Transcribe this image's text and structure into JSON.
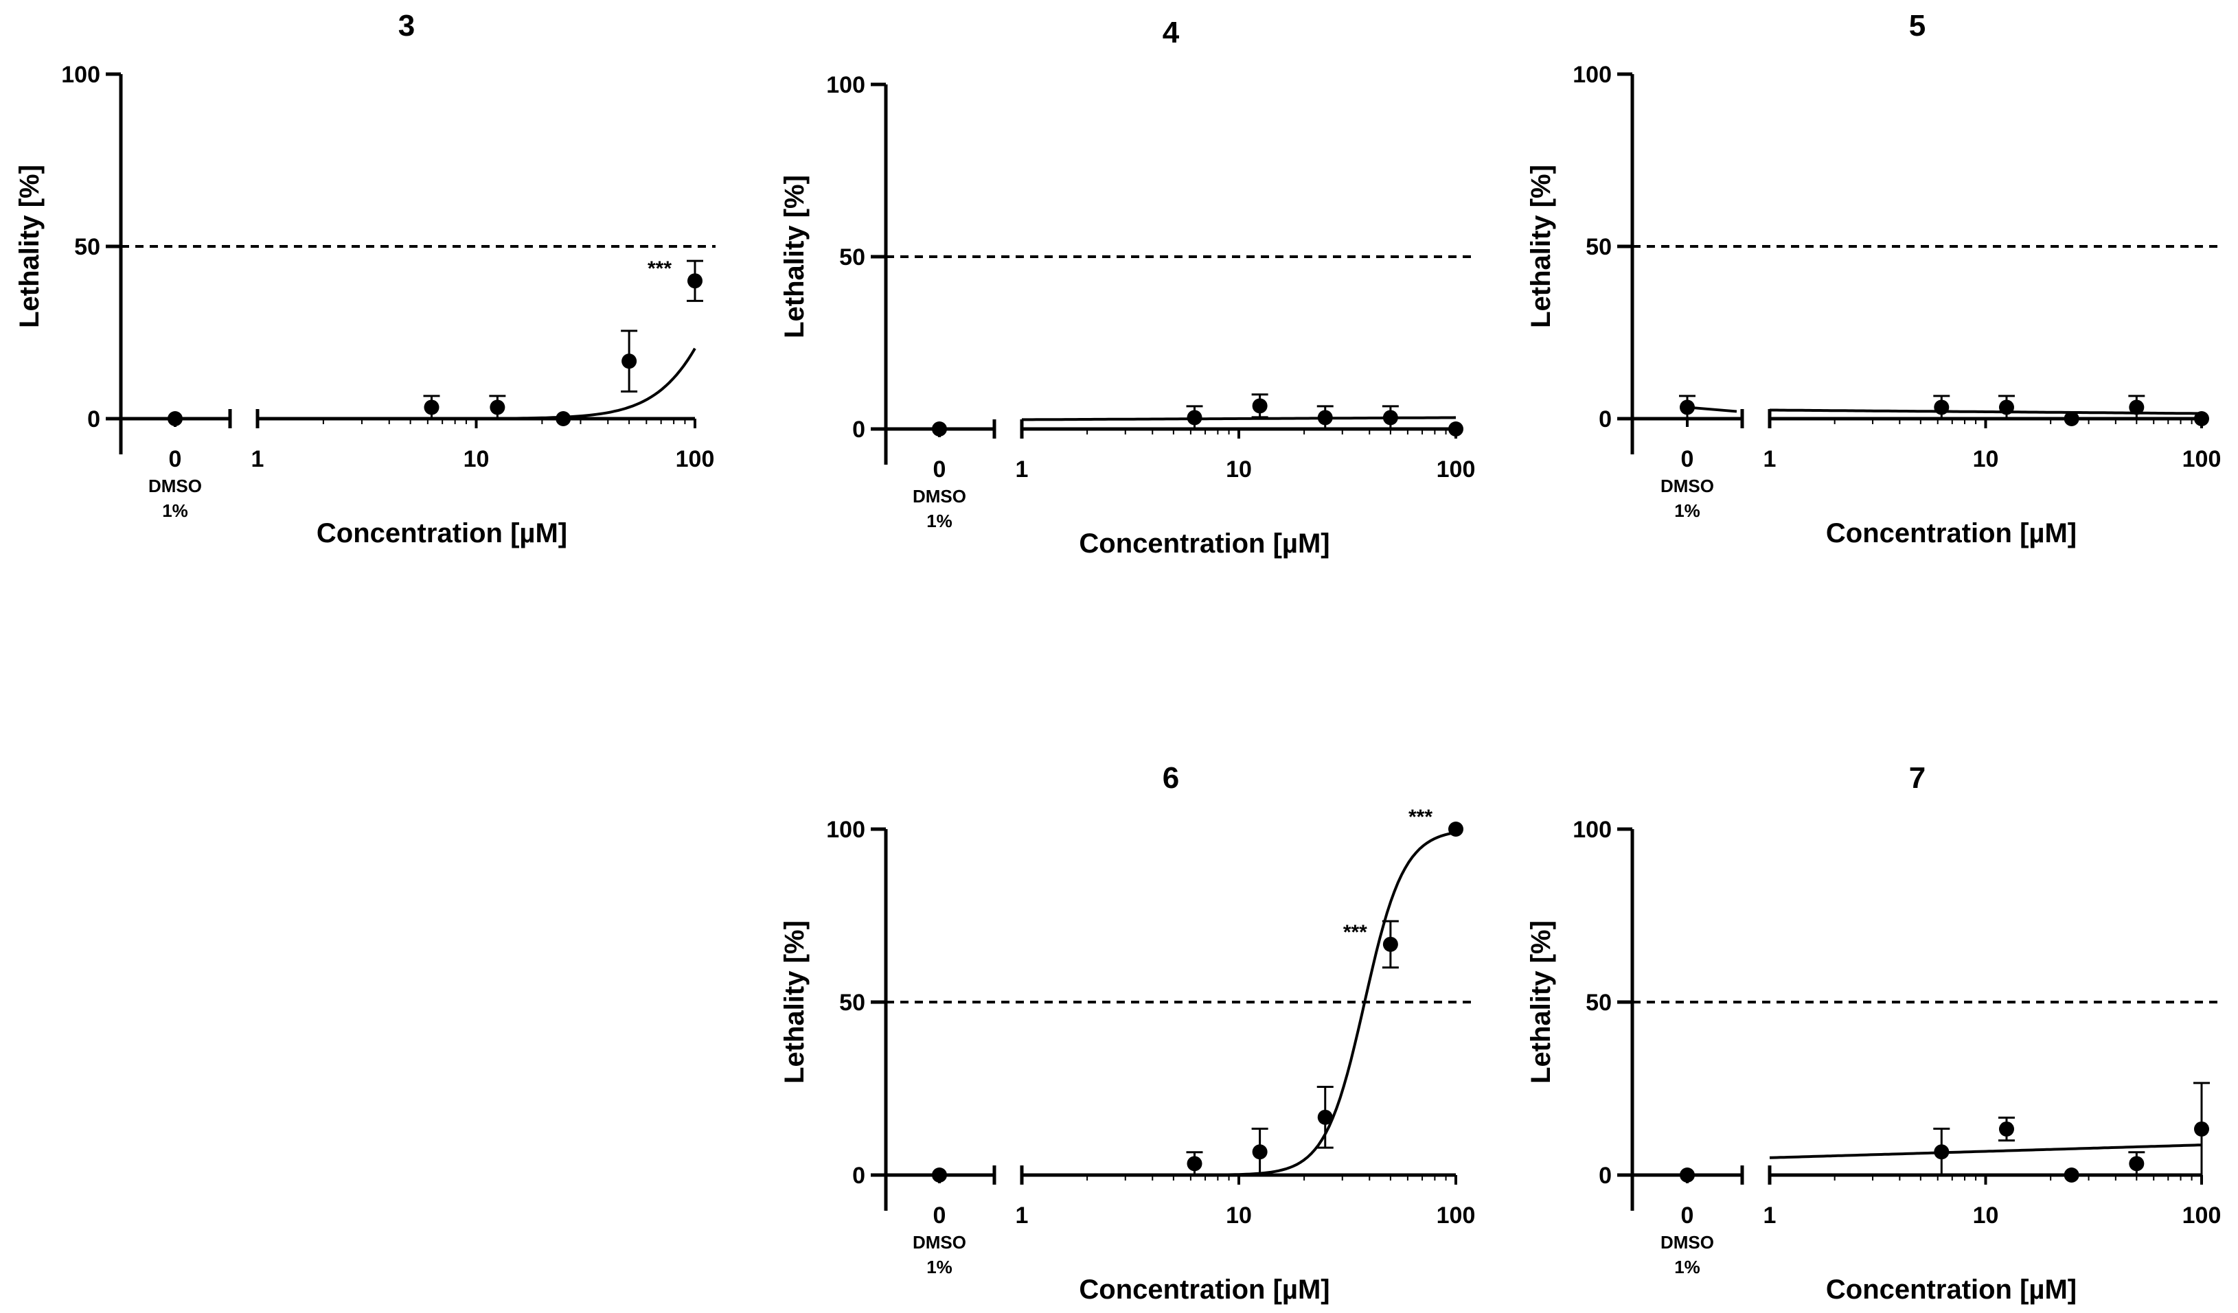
{
  "chart_data": [
    {
      "id": "3",
      "type": "scatter",
      "title": "3",
      "xlabel": "Concentration [µM]",
      "ylabel": "Lethality [%]",
      "xscale": "log",
      "xlim": [
        1,
        100
      ],
      "ylim": [
        0,
        100
      ],
      "yticks": [
        "0",
        "50",
        "100"
      ],
      "xticks": [
        "1",
        "10",
        "100"
      ],
      "control": {
        "tick": "0",
        "label_line1": "DMSO",
        "label_line2": "1%",
        "value": 0,
        "err": 0
      },
      "threshold": 50,
      "points": [
        {
          "x": 6.25,
          "y": 3.3,
          "err": 3.3
        },
        {
          "x": 12.5,
          "y": 3.3,
          "err": 3.3
        },
        {
          "x": 25,
          "y": 0,
          "err": 0
        },
        {
          "x": 50,
          "y": 16.7,
          "err": 8.8
        },
        {
          "x": 100,
          "y": 40,
          "err": 5.8
        }
      ],
      "fit": {
        "model": "hill",
        "ec50": 160,
        "hill": 2.9,
        "top": 100
      },
      "annotations": [
        {
          "x": 100,
          "y": 40,
          "text": "***"
        }
      ]
    },
    {
      "id": "4",
      "type": "scatter",
      "title": "4",
      "xlabel": "Concentration [µM]",
      "ylabel": "Lethality [%]",
      "xscale": "log",
      "xlim": [
        1,
        100
      ],
      "ylim": [
        0,
        100
      ],
      "yticks": [
        "0",
        "50",
        "100"
      ],
      "xticks": [
        "1",
        "10",
        "100"
      ],
      "control": {
        "tick": "0",
        "label_line1": "DMSO",
        "label_line2": "1%",
        "value": 0,
        "err": 0
      },
      "threshold": 50,
      "points": [
        {
          "x": 6.25,
          "y": 3.3,
          "err": 3.3
        },
        {
          "x": 12.5,
          "y": 6.7,
          "err": 3.3
        },
        {
          "x": 25,
          "y": 3.3,
          "err": 3.3
        },
        {
          "x": 50,
          "y": 3.3,
          "err": 3.3
        },
        {
          "x": 100,
          "y": 0,
          "err": 0
        }
      ],
      "fit": {
        "model": "line",
        "y_at_1": 2.7,
        "y_at_100": 3.3
      },
      "annotations": []
    },
    {
      "id": "5",
      "type": "scatter",
      "title": "5",
      "xlabel": "Concentration [µM]",
      "ylabel": "Lethality [%]",
      "xscale": "log",
      "xlim": [
        1,
        100
      ],
      "ylim": [
        0,
        100
      ],
      "yticks": [
        "0",
        "50",
        "100"
      ],
      "xticks": [
        "1",
        "10",
        "100"
      ],
      "control": {
        "tick": "0",
        "label_line1": "DMSO",
        "label_line2": "1%",
        "value": 3.3,
        "err": 3.3
      },
      "threshold": 50,
      "points": [
        {
          "x": 6.25,
          "y": 3.3,
          "err": 3.3
        },
        {
          "x": 12.5,
          "y": 3.3,
          "err": 3.3
        },
        {
          "x": 25,
          "y": 0,
          "err": 0
        },
        {
          "x": 50,
          "y": 3.3,
          "err": 3.3
        },
        {
          "x": 100,
          "y": 0,
          "err": 0
        }
      ],
      "fit": {
        "model": "line",
        "y_at_1": 2.5,
        "y_at_100": 1.5
      },
      "annotations": []
    },
    {
      "id": "6",
      "type": "scatter",
      "title": "6",
      "xlabel": "Concentration [µM]",
      "ylabel": "Lethality [%]",
      "xscale": "log",
      "xlim": [
        1,
        100
      ],
      "ylim": [
        0,
        100
      ],
      "yticks": [
        "0",
        "50",
        "100"
      ],
      "xticks": [
        "1",
        "10",
        "100"
      ],
      "control": {
        "tick": "0",
        "label_line1": "DMSO",
        "label_line2": "1%",
        "value": 0,
        "err": 0
      },
      "threshold": 50,
      "points": [
        {
          "x": 6.25,
          "y": 3.3,
          "err": 3.3
        },
        {
          "x": 12.5,
          "y": 6.7,
          "err": 6.7
        },
        {
          "x": 25,
          "y": 16.7,
          "err": 8.8
        },
        {
          "x": 50,
          "y": 66.7,
          "err": 6.7
        },
        {
          "x": 100,
          "y": 100,
          "err": 0
        }
      ],
      "fit": {
        "model": "hill",
        "ec50": 38,
        "hill": 4.8,
        "top": 100
      },
      "annotations": [
        {
          "x": 50,
          "y": 66.7,
          "text": "***"
        },
        {
          "x": 100,
          "y": 100,
          "text": "***"
        }
      ]
    },
    {
      "id": "7",
      "type": "scatter",
      "title": "7",
      "xlabel": "Concentration [µM]",
      "ylabel": "Lethality [%]",
      "xscale": "log",
      "xlim": [
        1,
        100
      ],
      "ylim": [
        0,
        100
      ],
      "yticks": [
        "0",
        "50",
        "100"
      ],
      "xticks": [
        "1",
        "10",
        "100"
      ],
      "control": {
        "tick": "0",
        "label_line1": "DMSO",
        "label_line2": "1%",
        "value": 0,
        "err": 0
      },
      "threshold": 50,
      "points": [
        {
          "x": 6.25,
          "y": 6.7,
          "err": 6.7
        },
        {
          "x": 12.5,
          "y": 13.3,
          "err": 3.3
        },
        {
          "x": 25,
          "y": 0,
          "err": 0
        },
        {
          "x": 50,
          "y": 3.3,
          "err": 3.3
        },
        {
          "x": 100,
          "y": 13.3,
          "err": 13.3
        }
      ],
      "fit": {
        "model": "line",
        "y_at_1": 5,
        "y_at_100": 8.7
      },
      "annotations": []
    }
  ]
}
